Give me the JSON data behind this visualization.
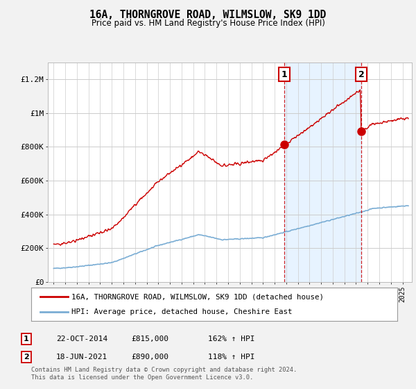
{
  "title": "16A, THORNGROVE ROAD, WILMSLOW, SK9 1DD",
  "subtitle": "Price paid vs. HM Land Registry's House Price Index (HPI)",
  "red_label": "16A, THORNGROVE ROAD, WILMSLOW, SK9 1DD (detached house)",
  "blue_label": "HPI: Average price, detached house, Cheshire East",
  "annotation1_date": "22-OCT-2014",
  "annotation1_price": "£815,000",
  "annotation1_hpi": "162% ↑ HPI",
  "annotation2_date": "18-JUN-2021",
  "annotation2_price": "£890,000",
  "annotation2_hpi": "118% ↑ HPI",
  "footer": "Contains HM Land Registry data © Crown copyright and database right 2024.\nThis data is licensed under the Open Government Licence v3.0.",
  "background_color": "#f2f2f2",
  "plot_bg": "#ffffff",
  "red_color": "#cc0000",
  "blue_color": "#7aadd4",
  "shade_color": "#ddeeff",
  "grid_color": "#cccccc",
  "sale1_x": 2014.81,
  "sale1_y": 815000,
  "sale2_x": 2021.46,
  "sale2_y": 890000,
  "ylim": [
    0,
    1300000
  ],
  "xlim_start": 1994.5,
  "xlim_end": 2025.8
}
